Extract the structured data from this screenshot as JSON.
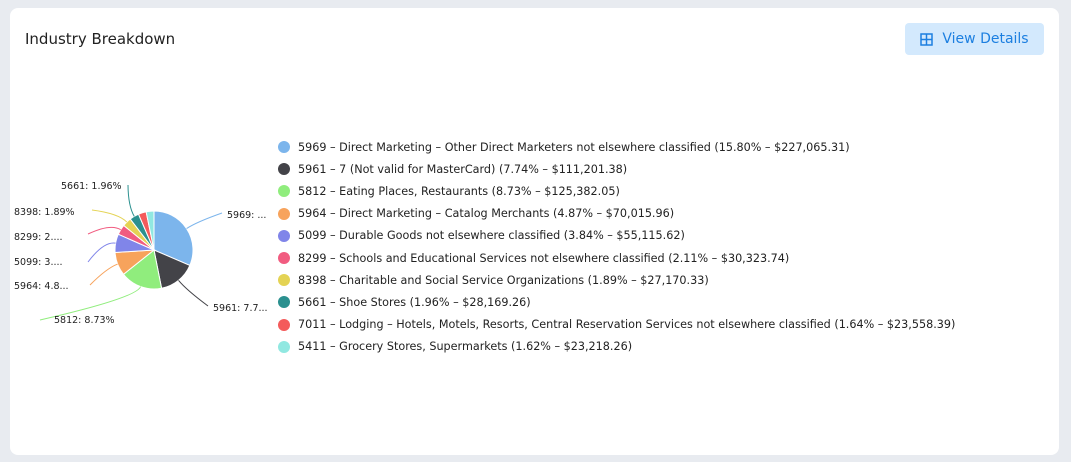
{
  "header": {
    "title": "Industry Breakdown",
    "view_details_label": "View Details",
    "view_details_icon": "table-icon"
  },
  "chart_data": {
    "type": "pie",
    "start": "top",
    "direction": "clockwise",
    "categories": [
      "5969",
      "5961",
      "5812",
      "5964",
      "5099",
      "8299",
      "8398",
      "5661",
      "7011",
      "5411"
    ],
    "values": [
      15.8,
      7.74,
      8.73,
      4.87,
      3.84,
      2.11,
      1.89,
      1.96,
      1.64,
      1.62
    ],
    "amounts": [
      "$227,065.31",
      "$111,201.38",
      "$125,382.05",
      "$70,015.96",
      "$55,115.62",
      "$30,323.74",
      "$27,170.33",
      "$28,169.26",
      "$23,558.39",
      "$23,218.26"
    ],
    "colors": [
      "#7cb5ec",
      "#434348",
      "#90ed7d",
      "#f7a35c",
      "#8085e9",
      "#f15c80",
      "#e4d354",
      "#2b908f",
      "#f45b5b",
      "#91e8e1"
    ],
    "data_labels": [
      "5969: ...",
      "5961: 7.7...",
      "5812: 8.73%",
      "5964: 4.8...",
      "5099: 3....",
      "8299: 2....",
      "8398: 1.89%",
      "5661: 1.96%",
      "",
      ""
    ],
    "legend": [
      "5969 – Direct Marketing – Other Direct Marketers not elsewhere classified (15.80% – $227,065.31)",
      "5961 – 7 (Not valid for MasterCard) (7.74% – $111,201.38)",
      "5812 – Eating Places, Restaurants (8.73% – $125,382.05)",
      "5964 – Direct Marketing – Catalog Merchants (4.87% – $70,015.96)",
      "5099 – Durable Goods not elsewhere classified (3.84% – $55,115.62)",
      "8299 – Schools and Educational Services not elsewhere classified (2.11% – $30,323.74)",
      "8398 – Charitable and Social Service Organizations (1.89% – $27,170.33)",
      "5661 – Shoe Stores (1.96% – $28,169.26)",
      "7011 – Lodging – Hotels, Motels, Resorts, Central Reservation Services not elsewhere classified (1.64% – $23,558.39)",
      "5411 – Grocery Stores, Supermarkets (1.62% – $23,218.26)"
    ],
    "legend_placement": "right"
  }
}
